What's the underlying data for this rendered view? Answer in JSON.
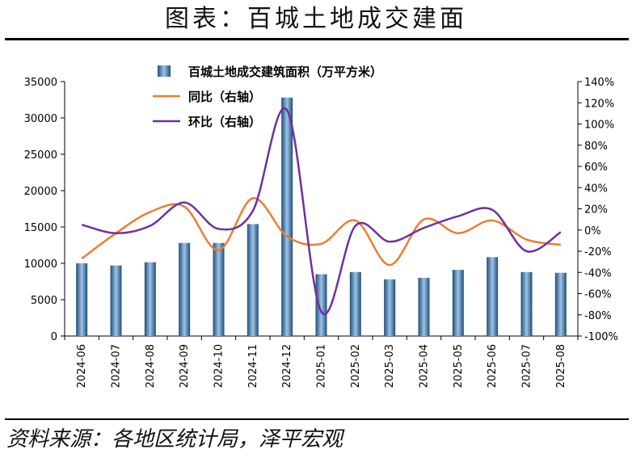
{
  "header": {
    "title": "图表：百城土地成交建面"
  },
  "footer": {
    "source": "资料来源：各地区统计局，泽平宏观"
  },
  "colors": {
    "bar_dark": "#1f4e79",
    "bar_light": "#9dc3e6",
    "yoy": "#ed7d31",
    "mom": "#7030a0",
    "axis": "#000000"
  },
  "chart_data": {
    "type": "bar",
    "categories": [
      "2024-06",
      "2024-07",
      "2024-08",
      "2024-09",
      "2024-10",
      "2024-11",
      "2024-12",
      "2025-01",
      "2025-02",
      "2025-03",
      "2025-04",
      "2025-05",
      "2025-06",
      "2025-07",
      "2025-08"
    ],
    "y_left": {
      "ylim": [
        0,
        35000
      ],
      "ticks": [
        "0",
        "5000",
        "10000",
        "15000",
        "20000",
        "25000",
        "30000",
        "35000"
      ]
    },
    "y_right": {
      "ylim": [
        -100,
        140
      ],
      "ticks": [
        "-100%",
        "-80%",
        "-60%",
        "-40%",
        "-20%",
        "0%",
        "20%",
        "40%",
        "60%",
        "80%",
        "100%",
        "120%",
        "140%"
      ]
    },
    "series": [
      {
        "name": "百城土地成交建筑面积（万平方米）",
        "type": "bar",
        "axis": "left",
        "values": [
          10000,
          9700,
          10150,
          12800,
          12800,
          15400,
          32800,
          8500,
          8800,
          7800,
          8000,
          9100,
          10850,
          8800,
          8700
        ]
      },
      {
        "name": "同比（右轴）",
        "type": "line",
        "axis": "right",
        "values": [
          -27,
          -3,
          17,
          22,
          -19,
          30,
          -6,
          -13,
          9,
          -33,
          10,
          -3,
          9,
          -9,
          -14
        ]
      },
      {
        "name": "环比（右轴）",
        "type": "line",
        "axis": "right",
        "values": [
          5,
          -3,
          4,
          26,
          1,
          18,
          113,
          -77,
          4,
          -11,
          2,
          13,
          19,
          -20,
          -2
        ]
      }
    ],
    "legend_position": "top-center",
    "grid": false
  }
}
